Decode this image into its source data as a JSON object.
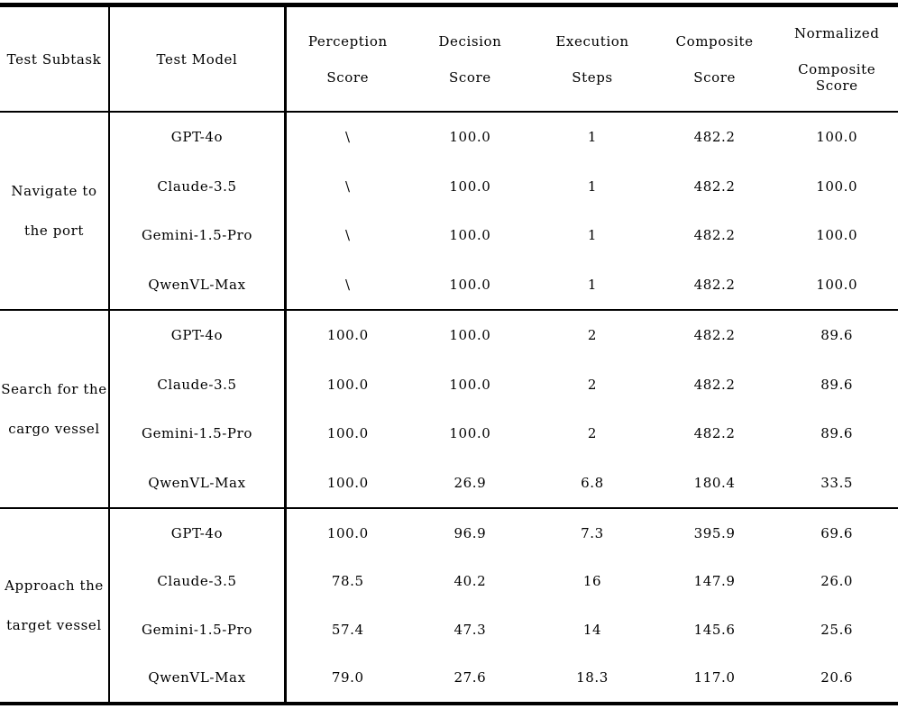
{
  "table": {
    "headers": {
      "subtask": "Test Subtask",
      "model": "Test Model",
      "cols": [
        {
          "line1": "Perception",
          "line2": "Score"
        },
        {
          "line1": "Decision",
          "line2": "Score"
        },
        {
          "line1": "Execution",
          "line2": "Steps"
        },
        {
          "line1": "Composite",
          "line2": "Score"
        },
        {
          "line1": "Normalized",
          "line2": "Composite Score"
        }
      ]
    },
    "groups": [
      {
        "subtask_line1": "Navigate to",
        "subtask_line2": "the port",
        "rows": [
          {
            "model": "GPT-4o",
            "perception": "\\",
            "decision": "100.0",
            "steps": "1",
            "composite": "482.2",
            "normalized": "100.0"
          },
          {
            "model": "Claude-3.5",
            "perception": "\\",
            "decision": "100.0",
            "steps": "1",
            "composite": "482.2",
            "normalized": "100.0"
          },
          {
            "model": "Gemini-1.5-Pro",
            "perception": "\\",
            "decision": "100.0",
            "steps": "1",
            "composite": "482.2",
            "normalized": "100.0"
          },
          {
            "model": "QwenVL-Max",
            "perception": "\\",
            "decision": "100.0",
            "steps": "1",
            "composite": "482.2",
            "normalized": "100.0"
          }
        ]
      },
      {
        "subtask_line1": "Search for the",
        "subtask_line2": "cargo vessel",
        "rows": [
          {
            "model": "GPT-4o",
            "perception": "100.0",
            "decision": "100.0",
            "steps": "2",
            "composite": "482.2",
            "normalized": "89.6"
          },
          {
            "model": "Claude-3.5",
            "perception": "100.0",
            "decision": "100.0",
            "steps": "2",
            "composite": "482.2",
            "normalized": "89.6"
          },
          {
            "model": "Gemini-1.5-Pro",
            "perception": "100.0",
            "decision": "100.0",
            "steps": "2",
            "composite": "482.2",
            "normalized": "89.6"
          },
          {
            "model": "QwenVL-Max",
            "perception": "100.0",
            "decision": "26.9",
            "steps": "6.8",
            "composite": "180.4",
            "normalized": "33.5"
          }
        ]
      },
      {
        "subtask_line1": "Approach the",
        "subtask_line2": "target vessel",
        "rows": [
          {
            "model": "GPT-4o",
            "perception": "100.0",
            "decision": "96.9",
            "steps": "7.3",
            "composite": "395.9",
            "normalized": "69.6"
          },
          {
            "model": "Claude-3.5",
            "perception": "78.5",
            "decision": "40.2",
            "steps": "16",
            "composite": "147.9",
            "normalized": "26.0"
          },
          {
            "model": "Gemini-1.5-Pro",
            "perception": "57.4",
            "decision": "47.3",
            "steps": "14",
            "composite": "145.6",
            "normalized": "25.6"
          },
          {
            "model": "QwenVL-Max",
            "perception": "79.0",
            "decision": "27.6",
            "steps": "18.3",
            "composite": "117.0",
            "normalized": "20.6"
          }
        ]
      }
    ]
  },
  "colors": {
    "background": "#ffffff",
    "text": "#000000",
    "rule": "#000000"
  }
}
